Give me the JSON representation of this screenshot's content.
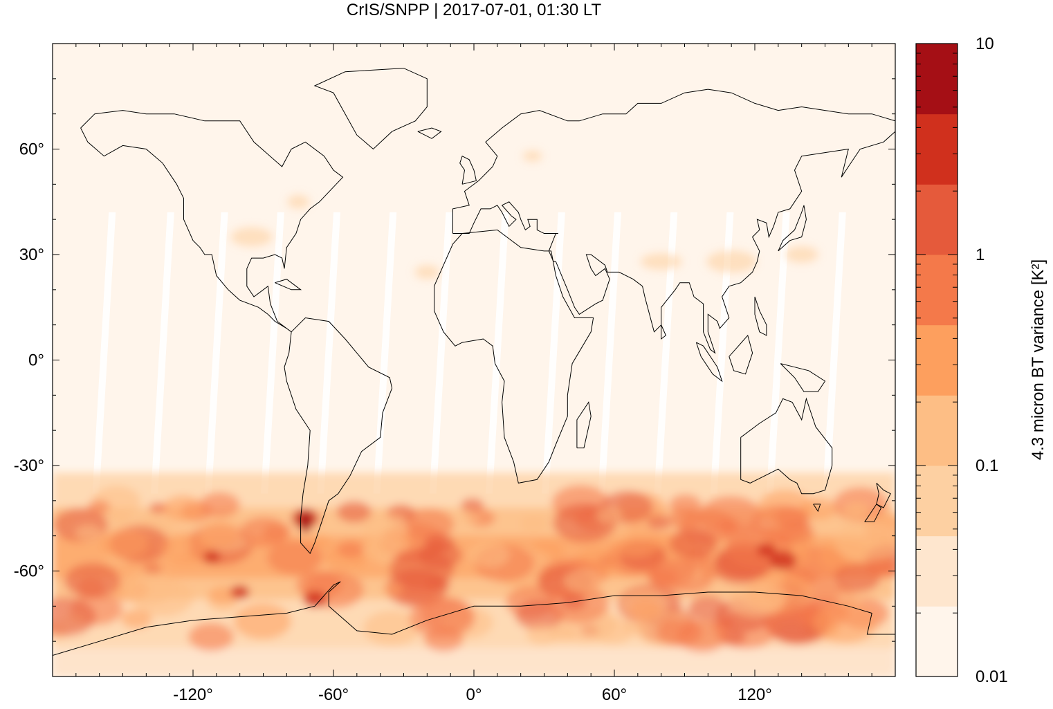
{
  "title": "CrIS/SNPP | 2017-07-01, 01:30 LT",
  "map": {
    "projection": "equirectangular",
    "lon_range": [
      -180,
      180
    ],
    "lat_range": [
      -90,
      90
    ],
    "background_color": "#fff5eb",
    "swath_gap_color": "#ffffff",
    "x_ticks": [
      {
        "value": -120,
        "label": "-120°"
      },
      {
        "value": -60,
        "label": "-60°"
      },
      {
        "value": 0,
        "label": "0°"
      },
      {
        "value": 60,
        "label": "60°"
      },
      {
        "value": 120,
        "label": "120°"
      }
    ],
    "y_ticks": [
      {
        "value": 60,
        "label": "60°"
      },
      {
        "value": 30,
        "label": "30°"
      },
      {
        "value": 0,
        "label": "0°"
      },
      {
        "value": -30,
        "label": "-30°"
      },
      {
        "value": -60,
        "label": "-60°"
      }
    ]
  },
  "colorbar": {
    "label": "4.3 micron BT variance [K²]",
    "scale": "log",
    "range": [
      0.01,
      10
    ],
    "tick_labels": [
      {
        "value": 10,
        "label": "10"
      },
      {
        "value": 1,
        "label": "1"
      },
      {
        "value": 0.1,
        "label": "0.1"
      },
      {
        "value": 0.01,
        "label": "0.01"
      }
    ],
    "colors": [
      "#fff5eb",
      "#fee6ce",
      "#fdd0a2",
      "#fdbe85",
      "#fd9f5e",
      "#f4794a",
      "#e55a3b",
      "#d0301d",
      "#a50f15"
    ]
  }
}
